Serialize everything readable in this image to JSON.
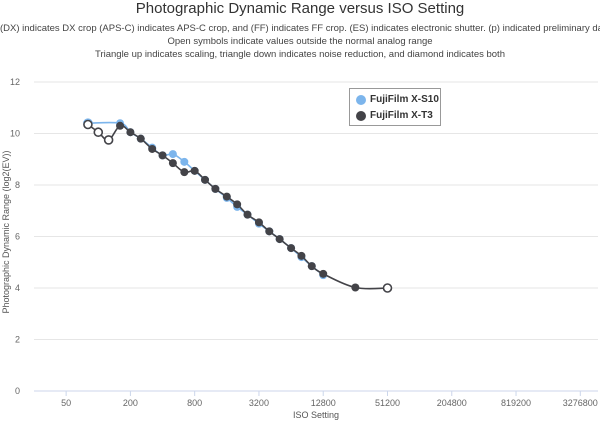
{
  "header": {
    "title": "Photographic Dynamic Range versus ISO Setting",
    "subtitle_lines": [
      "(DX) indicates DX crop (APS-C) indicates APS-C crop, and (FF) indicates FF crop. (ES) indicates electronic shutter. (p) indicated preliminary data.",
      "Open symbols indicate values outside the normal analog range",
      "Triangle up indicates scaling, triangle down indicates noise reduction, and diamond indicates both"
    ]
  },
  "chart_data": {
    "type": "line",
    "xlabel": "ISO Setting",
    "ylabel": "Photographic Dynamic Range (log2(EV))",
    "x_scale": "log2",
    "xlim": [
      25,
      4800000
    ],
    "ylim": [
      0,
      12
    ],
    "x_ticks": [
      50,
      200,
      800,
      3200,
      12800,
      51200,
      204800,
      819200,
      3276800
    ],
    "x_tick_labels": [
      "50",
      "200",
      "800",
      "3200",
      "12800",
      "51200",
      "204800",
      "819200",
      "3276800"
    ],
    "y_ticks": [
      0,
      2,
      4,
      6,
      8,
      10,
      12
    ],
    "y_tick_labels": [
      "0",
      "2",
      "4",
      "6",
      "8",
      "10",
      "12"
    ],
    "grid": "horizontal",
    "legend_position": "top-right",
    "series": [
      {
        "name": "FujiFilm X-S10",
        "color": "#7cb5ec",
        "points": [
          {
            "x": 80,
            "y": 10.4,
            "open": true
          },
          {
            "x": 160,
            "y": 10.4,
            "open": false
          },
          {
            "x": 200,
            "y": 10.05,
            "open": false
          },
          {
            "x": 250,
            "y": 9.8,
            "open": false
          },
          {
            "x": 320,
            "y": 9.45,
            "open": false
          },
          {
            "x": 400,
            "y": 9.15,
            "open": false
          },
          {
            "x": 500,
            "y": 9.2,
            "open": false
          },
          {
            "x": 640,
            "y": 8.9,
            "open": false
          },
          {
            "x": 800,
            "y": 8.55,
            "open": false
          },
          {
            "x": 1000,
            "y": 8.2,
            "open": false
          },
          {
            "x": 1250,
            "y": 7.85,
            "open": false
          },
          {
            "x": 1600,
            "y": 7.5,
            "open": false
          },
          {
            "x": 2000,
            "y": 7.15,
            "open": false
          },
          {
            "x": 2500,
            "y": 6.85,
            "open": false
          },
          {
            "x": 3200,
            "y": 6.5,
            "open": false
          },
          {
            "x": 4000,
            "y": 6.2,
            "open": false
          },
          {
            "x": 5000,
            "y": 5.9,
            "open": false
          },
          {
            "x": 6400,
            "y": 5.55,
            "open": false
          },
          {
            "x": 8000,
            "y": 5.2,
            "open": false
          },
          {
            "x": 10000,
            "y": 4.85,
            "open": false
          },
          {
            "x": 12800,
            "y": 4.5,
            "open": false
          }
        ]
      },
      {
        "name": "FujiFilm X-T3",
        "color": "#434348",
        "points": [
          {
            "x": 80,
            "y": 10.35,
            "open": true
          },
          {
            "x": 100,
            "y": 10.05,
            "open": true
          },
          {
            "x": 125,
            "y": 9.75,
            "open": true
          },
          {
            "x": 160,
            "y": 10.3,
            "open": false
          },
          {
            "x": 200,
            "y": 10.05,
            "open": false
          },
          {
            "x": 250,
            "y": 9.8,
            "open": false
          },
          {
            "x": 320,
            "y": 9.4,
            "open": false
          },
          {
            "x": 400,
            "y": 9.15,
            "open": false
          },
          {
            "x": 500,
            "y": 8.85,
            "open": false
          },
          {
            "x": 640,
            "y": 8.5,
            "open": false
          },
          {
            "x": 800,
            "y": 8.55,
            "open": false
          },
          {
            "x": 1000,
            "y": 8.2,
            "open": false
          },
          {
            "x": 1250,
            "y": 7.85,
            "open": false
          },
          {
            "x": 1600,
            "y": 7.55,
            "open": false
          },
          {
            "x": 2000,
            "y": 7.25,
            "open": false
          },
          {
            "x": 2500,
            "y": 6.85,
            "open": false
          },
          {
            "x": 3200,
            "y": 6.55,
            "open": false
          },
          {
            "x": 4000,
            "y": 6.2,
            "open": false
          },
          {
            "x": 5000,
            "y": 5.9,
            "open": false
          },
          {
            "x": 6400,
            "y": 5.55,
            "open": false
          },
          {
            "x": 8000,
            "y": 5.25,
            "open": false
          },
          {
            "x": 10000,
            "y": 4.85,
            "open": false
          },
          {
            "x": 12800,
            "y": 4.55,
            "open": false
          },
          {
            "x": 25600,
            "y": 4.02,
            "open": false
          },
          {
            "x": 51200,
            "y": 4.0,
            "open": true
          }
        ]
      }
    ]
  }
}
